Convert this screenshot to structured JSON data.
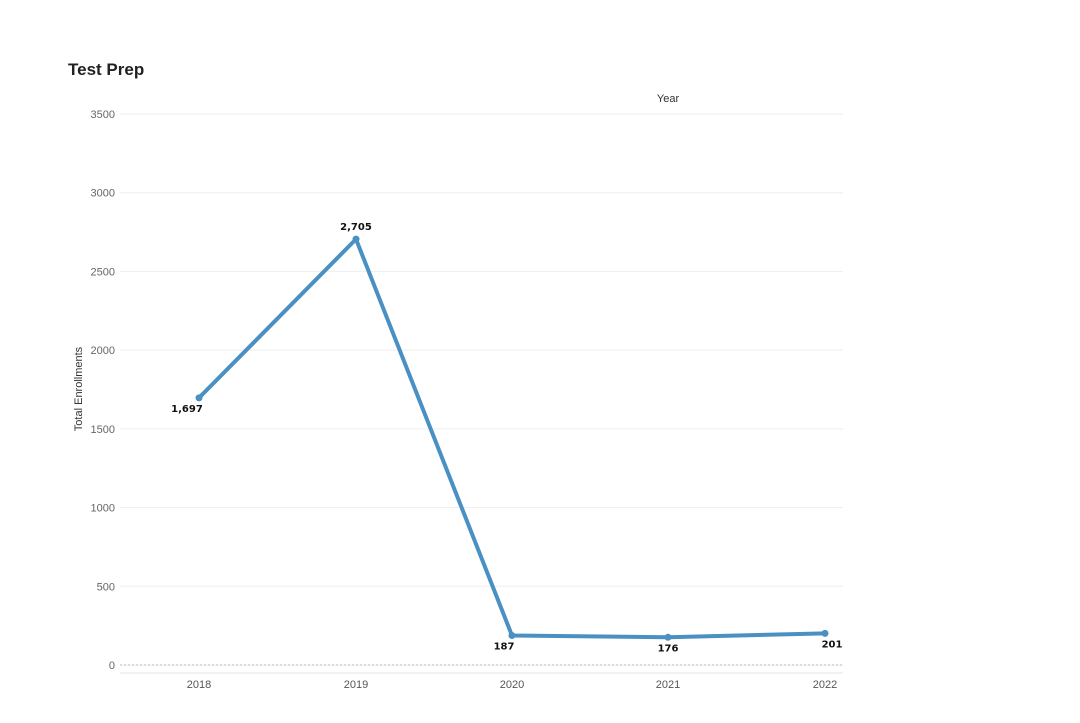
{
  "chart_data": {
    "type": "line",
    "title": "Test Prep",
    "xlabel": "Year",
    "ylabel": "Total Enrollments",
    "categories": [
      "2018",
      "2019",
      "2020",
      "2021",
      "2022"
    ],
    "series": [
      {
        "values": [
          1697,
          2705,
          187,
          176,
          201
        ],
        "labels": [
          "1,697",
          "2,705",
          "187",
          "176",
          "201"
        ],
        "color": "#4a90c2"
      }
    ],
    "ylim": [
      0,
      3500
    ],
    "yticks": [
      "0",
      "500",
      "1000",
      "1500",
      "2000",
      "2500",
      "3000",
      "3500"
    ],
    "grid": true
  }
}
